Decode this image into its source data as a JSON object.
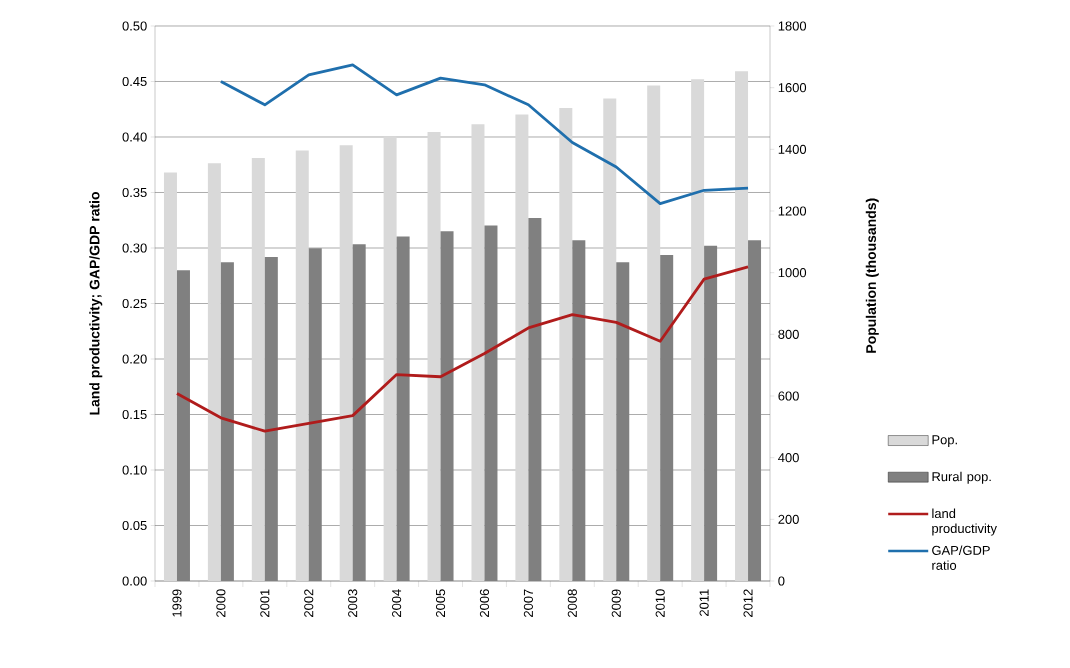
{
  "chart_data": {
    "type": "bar",
    "ylabel": "Land productivity; GAP/GDP ratio",
    "y2label": "Population (thousands)",
    "categories": [
      "1999",
      "2000",
      "2001",
      "2002",
      "2003",
      "2004",
      "2005",
      "2006",
      "2007",
      "2008",
      "2009",
      "2010",
      "2011",
      "2012"
    ],
    "series": [
      {
        "name": "Pop.",
        "type": "bar",
        "axis": "y2",
        "color": "#d9d9d9",
        "values": [
          1325,
          1355,
          1372,
          1396,
          1413,
          1442,
          1456,
          1481,
          1513,
          1534,
          1565,
          1607,
          1627,
          1653
        ]
      },
      {
        "name": "Rural pop.",
        "type": "bar",
        "axis": "y2",
        "color": "#808080",
        "values": [
          1008,
          1034,
          1051,
          1079,
          1092,
          1117,
          1134,
          1153,
          1177,
          1105,
          1034,
          1057,
          1087,
          1105
        ]
      },
      {
        "name": "land productivity",
        "type": "line",
        "axis": "y",
        "color": "#b01c1c",
        "values": [
          0.169,
          0.147,
          0.135,
          0.142,
          0.149,
          0.186,
          0.184,
          0.205,
          0.228,
          0.24,
          0.233,
          0.216,
          0.272,
          0.283
        ]
      },
      {
        "name": "GAP/GDP ratio",
        "type": "line",
        "axis": "y",
        "color": "#1f6fad",
        "values": [
          null,
          0.45,
          0.429,
          0.456,
          0.465,
          0.438,
          0.453,
          0.447,
          0.429,
          0.395,
          0.373,
          0.34,
          0.352,
          0.354
        ]
      }
    ],
    "ylim": [
      0,
      0.5
    ],
    "yticks": [
      {
        "value": 0,
        "label": "0.00"
      },
      {
        "value": 0.05,
        "label": "0.05"
      },
      {
        "value": 0.1,
        "label": "0.10"
      },
      {
        "value": 0.15,
        "label": "0.15"
      },
      {
        "value": 0.2,
        "label": "0.20"
      },
      {
        "value": 0.25,
        "label": "0.25"
      },
      {
        "value": 0.3,
        "label": "0.30"
      },
      {
        "value": 0.35,
        "label": "0.35"
      },
      {
        "value": 0.4,
        "label": "0.40"
      },
      {
        "value": 0.45,
        "label": "0.45"
      },
      {
        "value": 0.5,
        "label": "0.50"
      }
    ],
    "y2lim": [
      0,
      1800
    ],
    "y2ticks": [
      0,
      200,
      400,
      600,
      800,
      1000,
      1200,
      1400,
      1600,
      1800
    ],
    "grid": "y",
    "legend": "right"
  }
}
